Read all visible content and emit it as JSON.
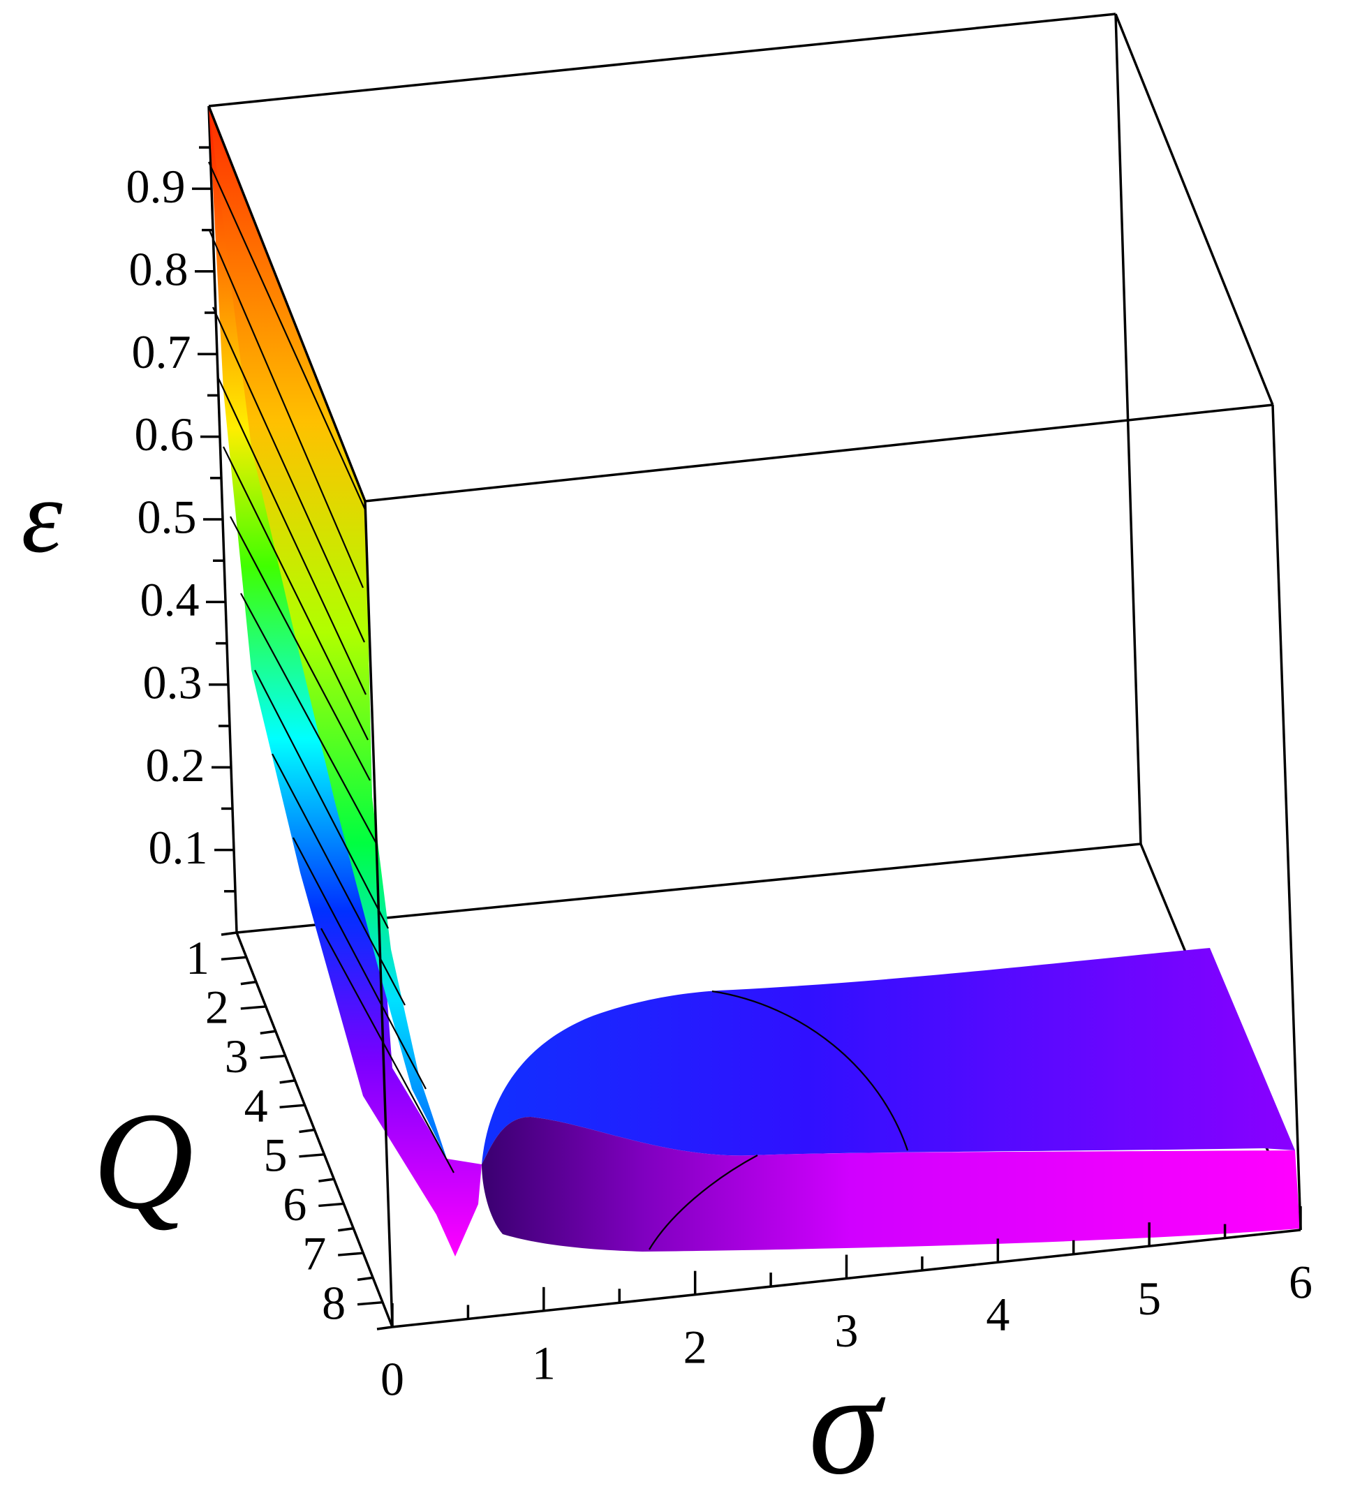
{
  "chart_data": {
    "type": "surface3d",
    "title": "",
    "axes": {
      "x": {
        "label": "σ",
        "ticks": [
          "0",
          "1",
          "2",
          "3",
          "4",
          "5",
          "6"
        ],
        "range": [
          0,
          6
        ]
      },
      "y": {
        "label": "Q",
        "ticks": [
          "1",
          "2",
          "3",
          "4",
          "5",
          "6",
          "7",
          "8"
        ],
        "range": [
          1,
          8
        ]
      },
      "z": {
        "label": "ε",
        "ticks": [
          "0.1",
          "0.2",
          "0.3",
          "0.4",
          "0.5",
          "0.6",
          "0.7",
          "0.8",
          "0.9"
        ],
        "range": [
          0,
          1
        ]
      }
    },
    "colormap": [
      "#ff0000",
      "#ff8000",
      "#ffff00",
      "#00ff00",
      "#00ffff",
      "#0000ff",
      "#8000ff",
      "#ff00ff"
    ],
    "box": true,
    "surface_profile": {
      "sigma": [
        0,
        0.1,
        0.2,
        0.3,
        0.4,
        0.5,
        0.6,
        0.8,
        1.0,
        1.5,
        2.0,
        3.0,
        4.0,
        5.0,
        6.0
      ],
      "epsilon_at_Q1": [
        0.98,
        0.75,
        0.52,
        0.33,
        0.19,
        0.1,
        0.06,
        0.1,
        0.14,
        0.17,
        0.18,
        0.18,
        0.17,
        0.16,
        0.15
      ],
      "epsilon_at_Q8": [
        0.5,
        0.3,
        0.15,
        0.06,
        0.02,
        0.0,
        0.0,
        0.04,
        0.06,
        0.08,
        0.09,
        0.09,
        0.09,
        0.08,
        0.08
      ]
    }
  }
}
